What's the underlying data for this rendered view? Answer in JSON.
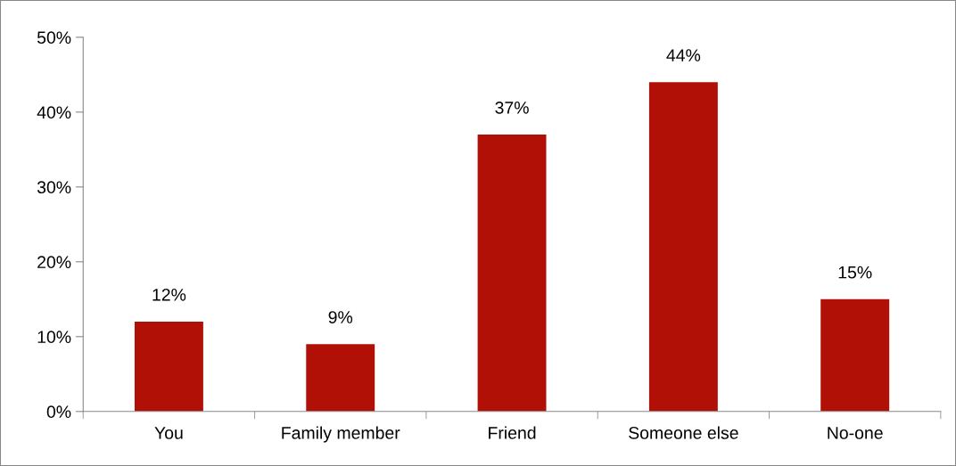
{
  "chart_data": {
    "type": "bar",
    "categories": [
      "You",
      "Family member",
      "Friend",
      "Someone else",
      "No-one"
    ],
    "values": [
      12,
      9,
      37,
      44,
      15
    ],
    "value_labels": [
      "12%",
      "9%",
      "37%",
      "44%",
      "15%"
    ],
    "color": "#b01005",
    "ylim": [
      0,
      50
    ],
    "yticks": [
      {
        "value": 0,
        "label": "0%"
      },
      {
        "value": 10,
        "label": "10%"
      },
      {
        "value": 20,
        "label": "20%"
      },
      {
        "value": 30,
        "label": "30%"
      },
      {
        "value": 40,
        "label": "40%"
      },
      {
        "value": 50,
        "label": "50%"
      }
    ],
    "grid": false,
    "legend": false
  }
}
